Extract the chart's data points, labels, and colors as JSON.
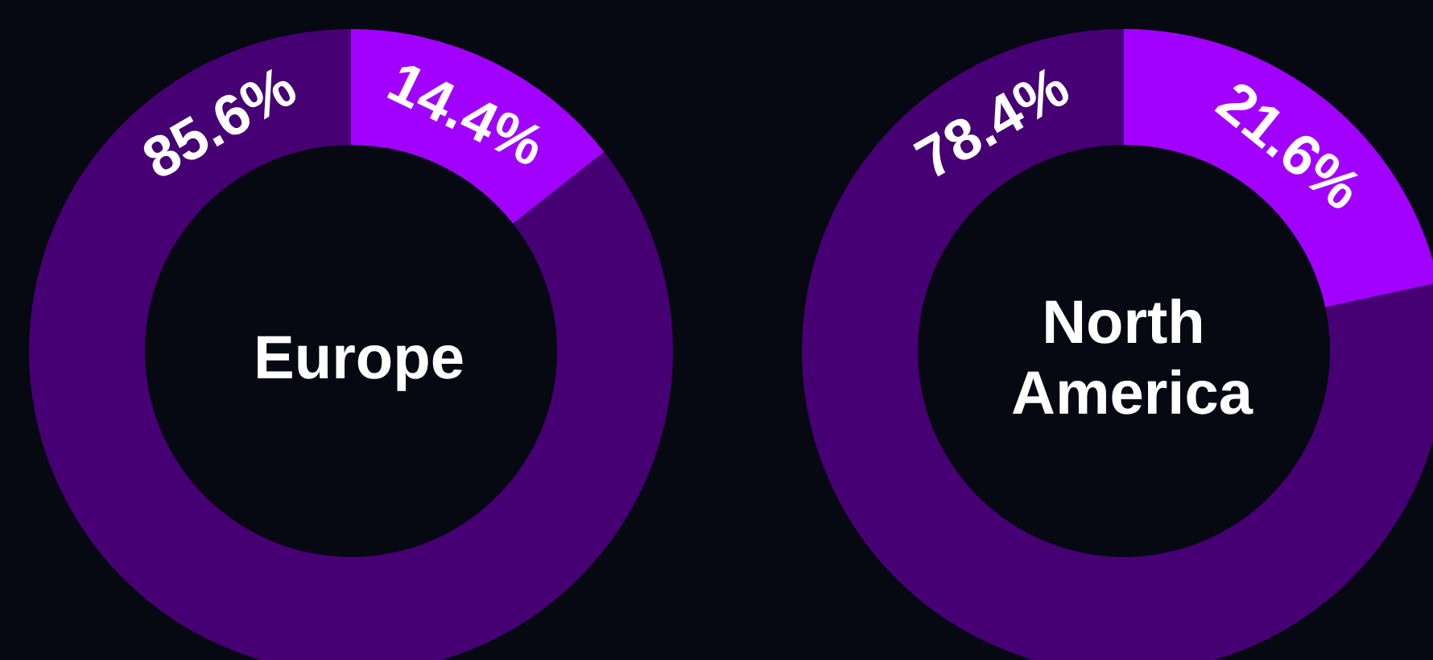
{
  "chart_data": [
    {
      "type": "donut",
      "title": "Europe",
      "categories": [
        null,
        null
      ],
      "values": [
        14.4,
        85.6
      ],
      "colors": [
        "#a100ff",
        "#460073"
      ],
      "value_labels": [
        "14.4%",
        "85.6%"
      ]
    },
    {
      "type": "donut",
      "title": "North America",
      "categories": [
        null,
        null
      ],
      "values": [
        21.6,
        78.4
      ],
      "colors": [
        "#a100ff",
        "#460073"
      ],
      "value_labels": [
        "21.6%",
        "78.4%"
      ]
    }
  ]
}
